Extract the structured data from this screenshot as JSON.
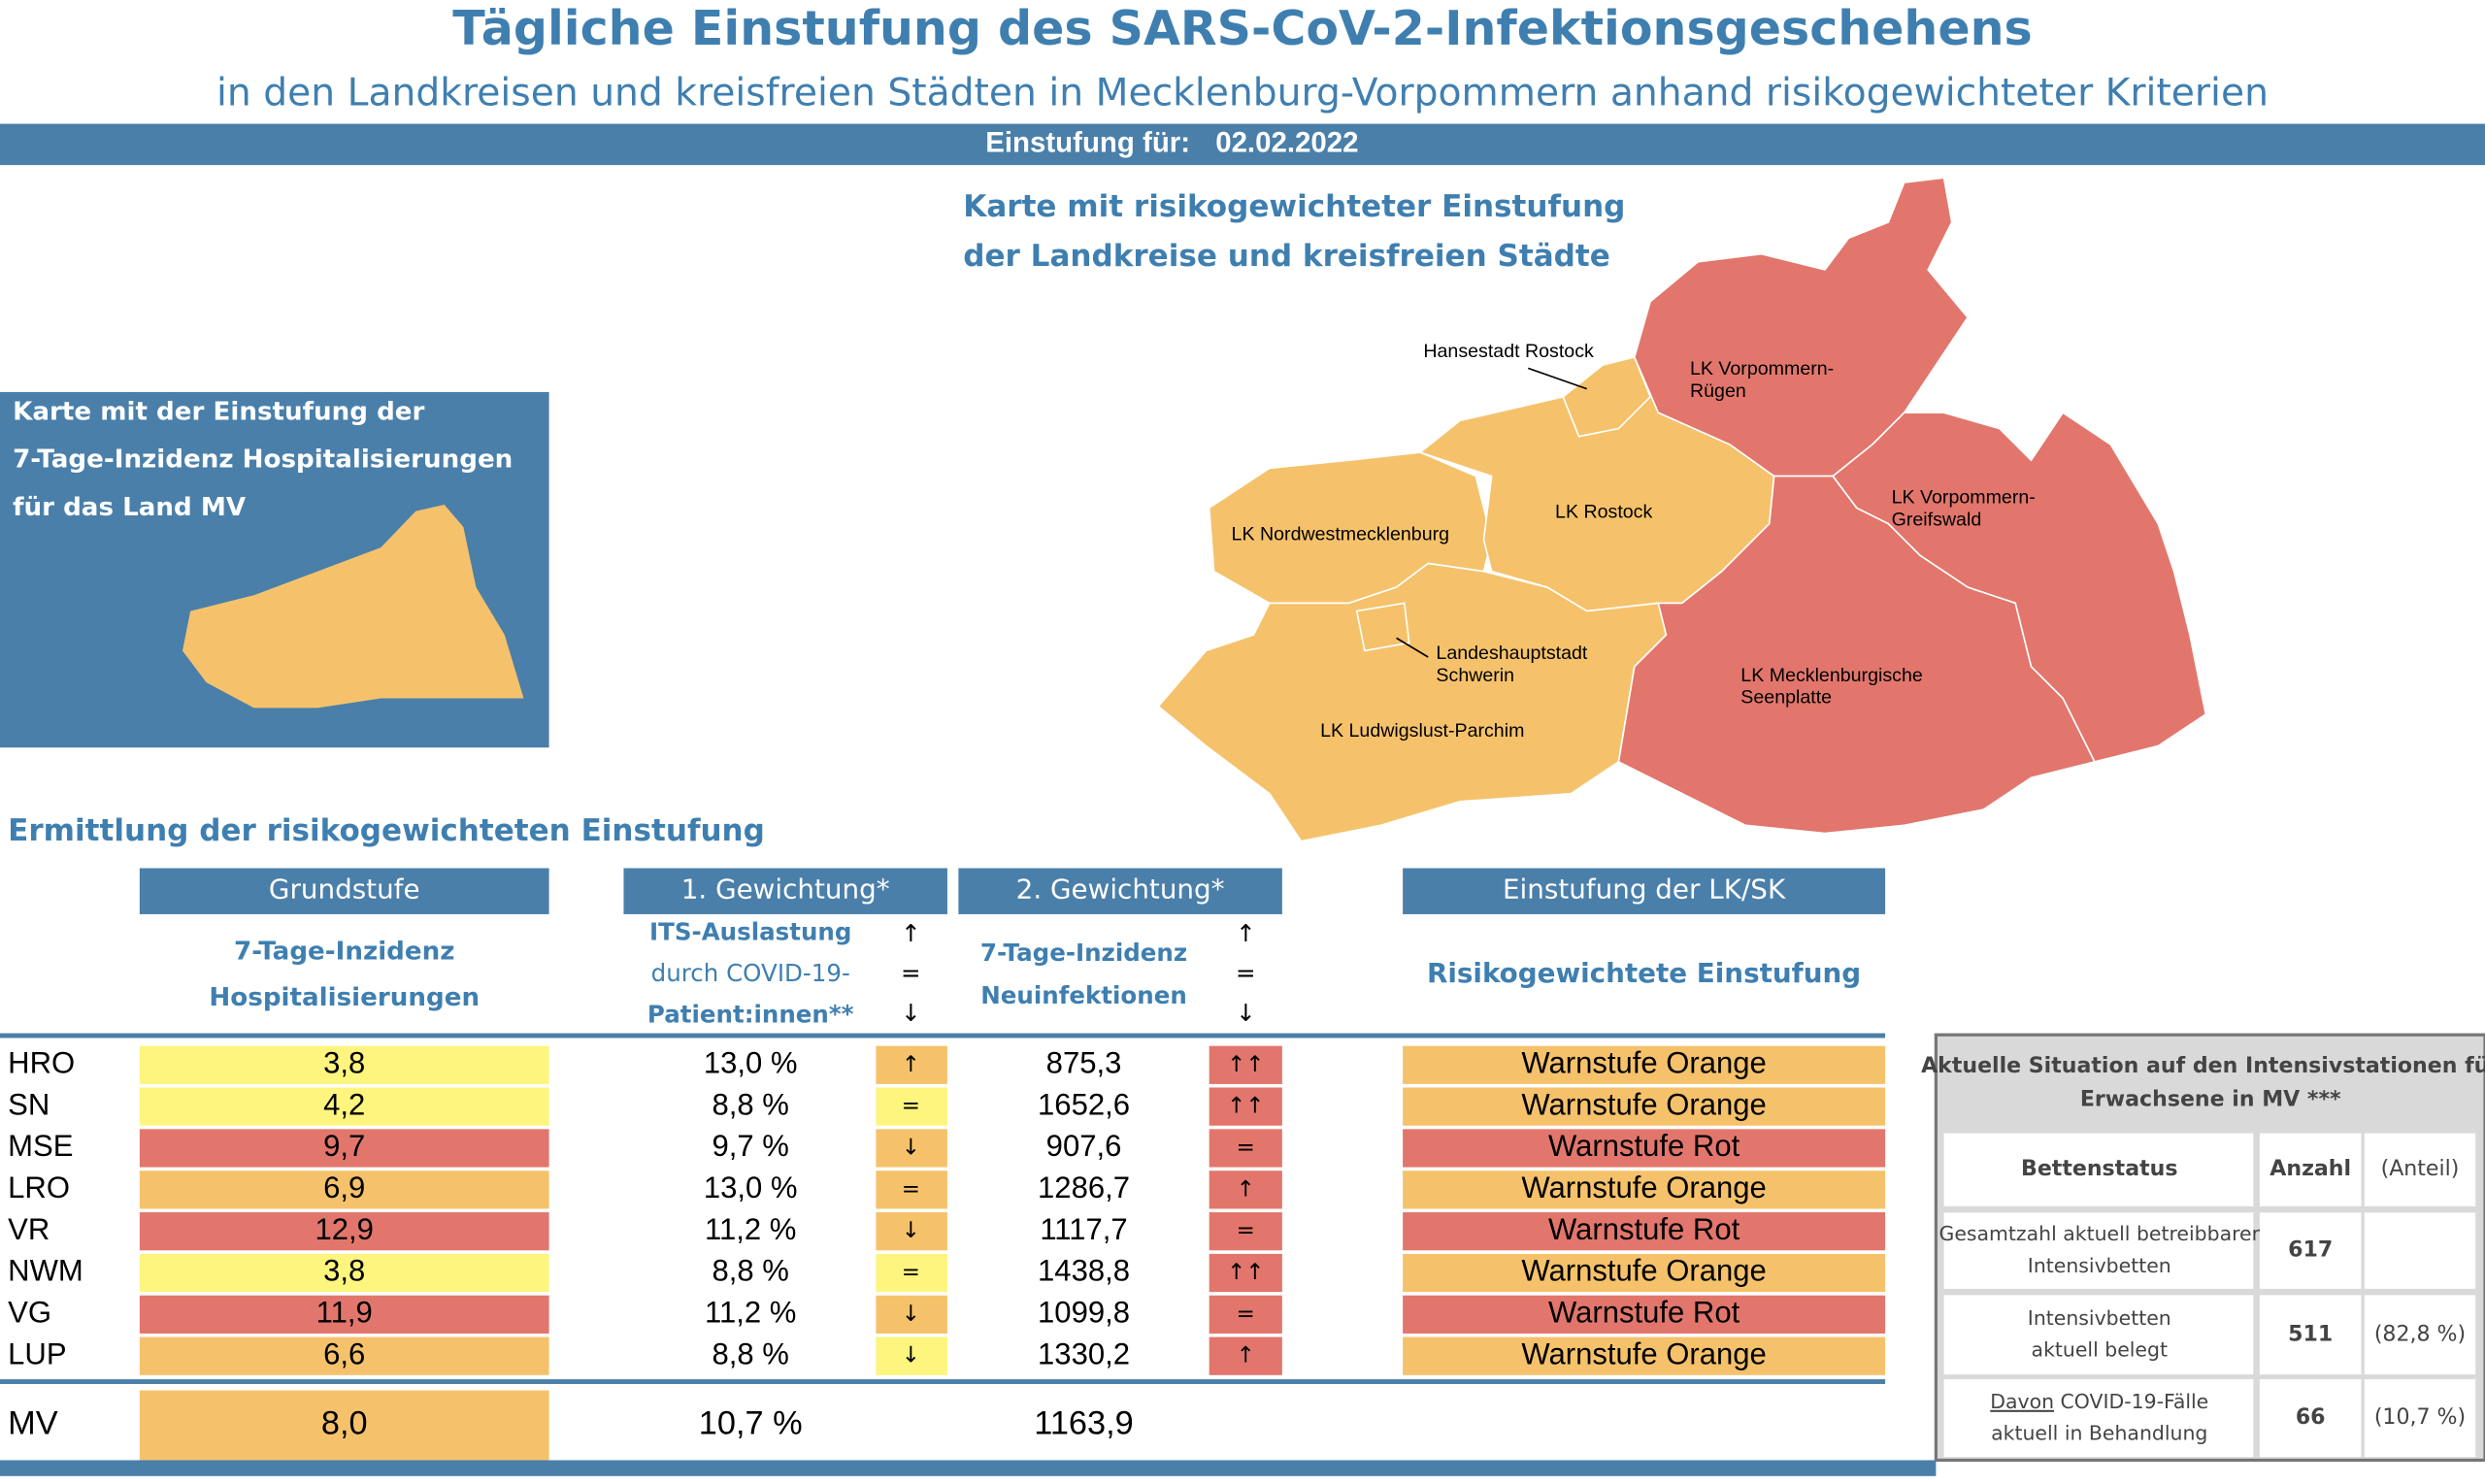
{
  "header": {
    "title": "Tägliche Einstufung des SARS-CoV-2-Infektionsgeschehens",
    "subtitle": "in den Landkreisen und kreisfreien Städten in Mecklenburg-Vorpommern anhand risikogewichteter Kriterien",
    "date_label": "Einstufung für:",
    "date": "02.02.2022"
  },
  "hosp_map": {
    "lines": [
      "Karte mit der Einstufung der",
      "7-Tage-Inzidenz Hospitalisierungen",
      "für das Land MV"
    ]
  },
  "risk_map": {
    "title_lines": [
      "Karte mit risikogewichteter Einstufung",
      "der Landkreise und kreisfreien Städte"
    ],
    "regions": [
      {
        "lines": [
          "Hansestadt Rostock"
        ]
      },
      {
        "lines": [
          "LK Vorpommern-",
          "Rügen"
        ]
      },
      {
        "lines": [
          "LK Vorpommern-",
          "Greifswald"
        ]
      },
      {
        "lines": [
          "LK Rostock"
        ]
      },
      {
        "lines": [
          "LK Nordwestmecklenburg"
        ]
      },
      {
        "lines": [
          "Landeshauptstadt",
          "Schwerin"
        ]
      },
      {
        "lines": [
          "LK Mecklenburgische",
          "Seenplatte"
        ]
      },
      {
        "lines": [
          "LK Ludwigslust-Parchim"
        ]
      }
    ]
  },
  "table": {
    "title": "Ermittlung der risikogewichteten Einstufung",
    "columns": [
      "Grundstufe",
      "1. Gewichtung*",
      "2. Gewichtung*",
      "Einstufung der LK/SK"
    ],
    "sub": {
      "hosp": [
        "7-Tage-Inzidenz",
        "Hospitalisierungen"
      ],
      "its": [
        "ITS-Auslastung",
        "durch COVID-19-",
        "Patient:innen**"
      ],
      "its_trend_legend": [
        "↑",
        "=",
        "↓"
      ],
      "inz": [
        "7-Tage-Inzidenz",
        "Neuinfektionen"
      ],
      "inz_trend_legend": [
        "↑",
        "=",
        "↓"
      ],
      "level": "Risikogewichtete Einstufung"
    },
    "rows": [
      {
        "name": "HRO",
        "hosp": "3,8",
        "hosp_color": "#fdf57e",
        "its": "13,0 %",
        "its_trend": "↑",
        "its_trend_color": "#f5c26b",
        "inz": "875,3",
        "inz_trend": "↑↑",
        "inz_trend_color": "#e2766c",
        "level": "Warnstufe Orange",
        "level_color": "#f5c26b"
      },
      {
        "name": "SN",
        "hosp": "4,2",
        "hosp_color": "#fdf57e",
        "its": "8,8 %",
        "its_trend": "=",
        "its_trend_color": "#fdf57e",
        "inz": "1652,6",
        "inz_trend": "↑↑",
        "inz_trend_color": "#e2766c",
        "level": "Warnstufe Orange",
        "level_color": "#f5c26b"
      },
      {
        "name": "MSE",
        "hosp": "9,7",
        "hosp_color": "#e2766c",
        "its": "9,7 %",
        "its_trend": "↓",
        "its_trend_color": "#f5c26b",
        "inz": "907,6",
        "inz_trend": "=",
        "inz_trend_color": "#e2766c",
        "level": "Warnstufe Rot",
        "level_color": "#e2766c"
      },
      {
        "name": "LRO",
        "hosp": "6,9",
        "hosp_color": "#f5c26b",
        "its": "13,0 %",
        "its_trend": "=",
        "its_trend_color": "#f5c26b",
        "inz": "1286,7",
        "inz_trend": "↑",
        "inz_trend_color": "#e2766c",
        "level": "Warnstufe Orange",
        "level_color": "#f5c26b"
      },
      {
        "name": "VR",
        "hosp": "12,9",
        "hosp_color": "#e2766c",
        "its": "11,2 %",
        "its_trend": "↓",
        "its_trend_color": "#f5c26b",
        "inz": "1117,7",
        "inz_trend": "=",
        "inz_trend_color": "#e2766c",
        "level": "Warnstufe Rot",
        "level_color": "#e2766c"
      },
      {
        "name": "NWM",
        "hosp": "3,8",
        "hosp_color": "#fdf57e",
        "its": "8,8 %",
        "its_trend": "=",
        "its_trend_color": "#fdf57e",
        "inz": "1438,8",
        "inz_trend": "↑↑",
        "inz_trend_color": "#e2766c",
        "level": "Warnstufe Orange",
        "level_color": "#f5c26b"
      },
      {
        "name": "VG",
        "hosp": "11,9",
        "hosp_color": "#e2766c",
        "its": "11,2 %",
        "its_trend": "↓",
        "its_trend_color": "#f5c26b",
        "inz": "1099,8",
        "inz_trend": "=",
        "inz_trend_color": "#e2766c",
        "level": "Warnstufe Rot",
        "level_color": "#e2766c"
      },
      {
        "name": "LUP",
        "hosp": "6,6",
        "hosp_color": "#f5c26b",
        "its": "8,8 %",
        "its_trend": "↓",
        "its_trend_color": "#fdf57e",
        "inz": "1330,2",
        "inz_trend": "↑",
        "inz_trend_color": "#e2766c",
        "level": "Warnstufe Orange",
        "level_color": "#f5c26b"
      }
    ],
    "total": {
      "name": "MV",
      "hosp": "8,0",
      "hosp_color": "#f5c26b",
      "its": "10,7 %",
      "inz": "1163,9"
    }
  },
  "icu": {
    "title_lines": [
      "Aktuelle Situation auf den Intensivstationen für",
      "Erwachsene in MV ***"
    ],
    "headers": [
      "Bettenstatus",
      "Anzahl",
      "(Anteil)"
    ],
    "rows": [
      {
        "lines": [
          "Gesamtzahl aktuell betreibbarer",
          "Intensivbetten"
        ],
        "count": "617"
      },
      {
        "lines": [
          "Intensivbetten",
          "aktuell belegt"
        ],
        "count": "511",
        "share": "(82,8 %)"
      },
      {
        "underlined": "Davon",
        "lines": [
          "COVID-19-Fälle",
          "aktuell in Behandlung"
        ],
        "count": "66",
        "share": "(10,7 %)"
      }
    ]
  }
}
